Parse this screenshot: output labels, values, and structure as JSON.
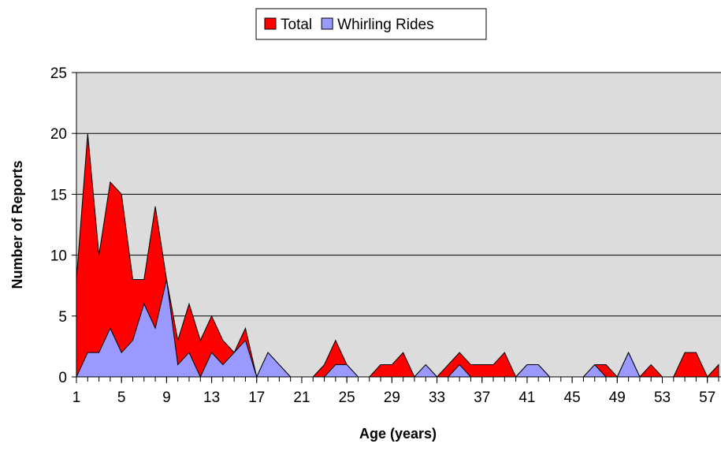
{
  "chart_data": {
    "type": "area",
    "x_label": "Age (years)",
    "y_label": "Number of Reports",
    "x": [
      1,
      2,
      3,
      4,
      5,
      6,
      7,
      8,
      9,
      10,
      11,
      12,
      13,
      14,
      15,
      16,
      17,
      18,
      19,
      20,
      21,
      22,
      23,
      24,
      25,
      26,
      27,
      28,
      29,
      30,
      31,
      32,
      33,
      34,
      35,
      36,
      37,
      38,
      39,
      40,
      41,
      42,
      43,
      44,
      45,
      46,
      47,
      48,
      49,
      50,
      51,
      52,
      53,
      54,
      55,
      56,
      57,
      58
    ],
    "series": [
      {
        "name": "Total",
        "color": "#ff0000",
        "values": [
          8,
          20,
          10,
          16,
          15,
          8,
          8,
          14,
          8,
          3,
          6,
          3,
          5,
          3,
          2,
          4,
          0,
          2,
          1,
          0,
          0,
          0,
          1,
          3,
          1,
          0,
          0,
          1,
          1,
          2,
          0,
          1,
          0,
          1,
          2,
          1,
          1,
          1,
          2,
          0,
          1,
          1,
          0,
          0,
          0,
          0,
          1,
          1,
          0,
          2,
          0,
          1,
          0,
          0,
          2,
          2,
          0,
          1
        ]
      },
      {
        "name": "Whirling Rides",
        "color": "#9999ff",
        "values": [
          0,
          2,
          2,
          4,
          2,
          3,
          6,
          4,
          8,
          1,
          2,
          0,
          2,
          1,
          2,
          3,
          0,
          2,
          1,
          0,
          0,
          0,
          0,
          1,
          1,
          0,
          0,
          0,
          0,
          0,
          0,
          1,
          0,
          0,
          1,
          0,
          0,
          0,
          0,
          0,
          1,
          1,
          0,
          0,
          0,
          0,
          1,
          0,
          0,
          2,
          0,
          0,
          0,
          0,
          0,
          0,
          0,
          0
        ]
      }
    ],
    "xlim": [
      1,
      58
    ],
    "xticks": [
      1,
      5,
      9,
      13,
      17,
      21,
      25,
      29,
      33,
      37,
      41,
      45,
      49,
      53,
      57
    ],
    "ylim": [
      0,
      25
    ],
    "yticks": [
      0,
      5,
      10,
      15,
      20,
      25
    ],
    "grid": true,
    "legend": "top"
  }
}
